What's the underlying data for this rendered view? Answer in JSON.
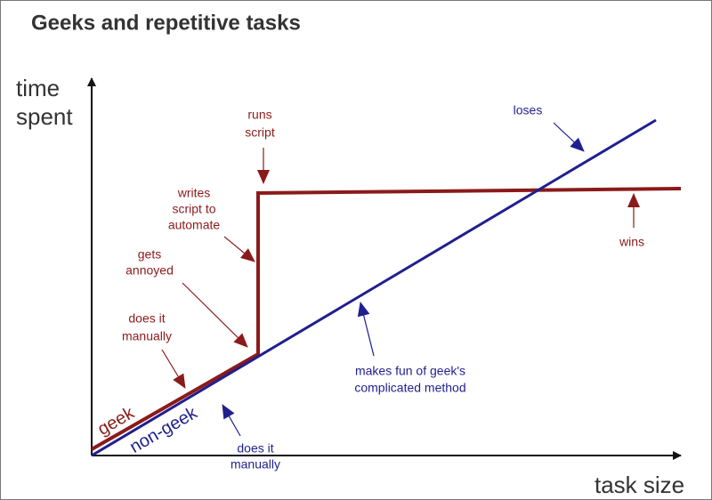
{
  "header": {
    "title": "Geeks and repetitive tasks"
  },
  "axes": {
    "y_label": [
      "time",
      "spent"
    ],
    "x_label": "task size"
  },
  "lines": {
    "geek": "geek",
    "non_geek": "non-geek"
  },
  "annotations": {
    "runs_script": [
      "runs",
      "script"
    ],
    "writes_script": [
      "writes",
      "script to",
      "automate"
    ],
    "gets_annoyed": [
      "gets",
      "annoyed"
    ],
    "geek_manually": [
      "does it",
      "manually"
    ],
    "wins": [
      "wins"
    ],
    "loses": [
      "loses"
    ],
    "makes_fun": [
      "makes fun of geek's",
      "complicated method"
    ],
    "nongeek_manually": [
      "does it",
      "manually"
    ]
  }
}
